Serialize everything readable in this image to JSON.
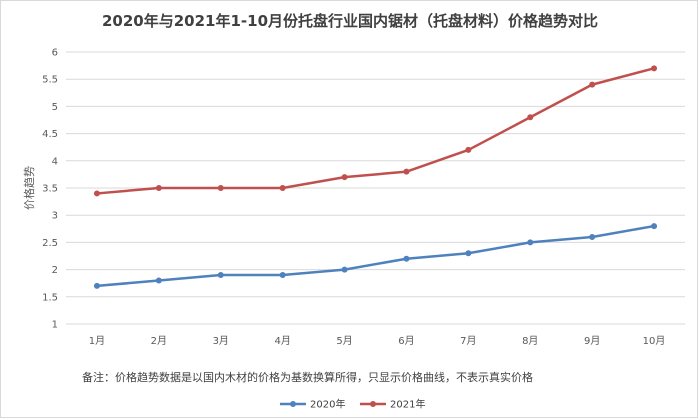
{
  "chart_data": {
    "type": "line",
    "title": "2020年与2021年1-10月份托盘行业国内锯材（托盘材料）价格趋势对比",
    "ylabel": "价格趋势",
    "xlabel": "",
    "categories": [
      "1月",
      "2月",
      "3月",
      "4月",
      "5月",
      "6月",
      "7月",
      "8月",
      "9月",
      "10月"
    ],
    "ylim": [
      1,
      6
    ],
    "yticks": [
      "1",
      "1.5",
      "2",
      "2.5",
      "3",
      "3.5",
      "4",
      "4.5",
      "5",
      "5.5",
      "6"
    ],
    "grid": true,
    "legend_position": "bottom",
    "series": [
      {
        "name": "2020年",
        "color": "#4f81bd",
        "values": [
          1.7,
          1.8,
          1.9,
          1.9,
          2.0,
          2.2,
          2.3,
          2.5,
          2.6,
          2.8
        ]
      },
      {
        "name": "2021年",
        "color": "#c0504d",
        "values": [
          3.4,
          3.5,
          3.5,
          3.5,
          3.7,
          3.8,
          4.2,
          4.8,
          5.4,
          5.7
        ]
      }
    ],
    "note": "备注：价格趋势数据是以国内木材的价格为基数换算所得，只显示价格曲线，不表示真实价格"
  }
}
